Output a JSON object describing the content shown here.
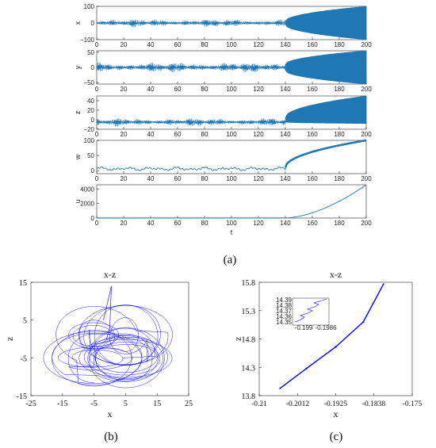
{
  "figure": {
    "caption_a": "(a)",
    "caption_b": "(b)",
    "caption_c": "(c)"
  },
  "chart_data": [
    {
      "type": "line",
      "panel": "a",
      "xlabel": "t",
      "x_ticks": [
        "0",
        "20",
        "40",
        "60",
        "80",
        "100",
        "120",
        "140",
        "160",
        "180",
        "200"
      ],
      "xlim": [
        0,
        200
      ],
      "line_color": "#1f77b4",
      "subplots": [
        {
          "ylabel": "x",
          "ylim": [
            -100,
            100
          ],
          "yticks": [
            "100",
            "0",
            "−100"
          ]
        },
        {
          "ylabel": "y",
          "ylim": [
            -55,
            55
          ],
          "yticks": [
            "50",
            "0",
            "−50"
          ]
        },
        {
          "ylabel": "z",
          "ylim": [
            -20,
            50
          ],
          "yticks": [
            "40",
            "20",
            "0",
            "−20"
          ]
        },
        {
          "ylabel": "w",
          "ylim": [
            -10,
            100
          ],
          "yticks": [
            "100",
            "50",
            "0"
          ]
        },
        {
          "ylabel": "u",
          "ylim": [
            0,
            4600
          ],
          "yticks": [
            "4000",
            "2000",
            "0"
          ]
        }
      ],
      "summary": {
        "t_transition": 140,
        "x_envelope_end": 100,
        "y_envelope_end": 55,
        "z_upper_end": 50,
        "w_end": 100,
        "u_end": 4600
      }
    },
    {
      "type": "line",
      "panel": "b",
      "title": "x-z",
      "xlabel": "x",
      "ylabel": "z",
      "xlim": [
        -25,
        25
      ],
      "ylim": [
        -15,
        15
      ],
      "x_ticks": [
        "-25",
        "-15",
        "-5",
        "5",
        "15",
        "25"
      ],
      "y_ticks": [
        "15",
        "5",
        "-5",
        "-15"
      ],
      "line_color": "#0000ff"
    },
    {
      "type": "line",
      "panel": "c",
      "title": "x-z",
      "xlabel": "x",
      "ylabel": "z",
      "xlim": [
        -0.21,
        -0.175
      ],
      "ylim": [
        13.8,
        15.8
      ],
      "x_ticks": [
        "-0.21",
        "-0.2012",
        "-0.1925",
        "-0.1838",
        "-0.175"
      ],
      "y_ticks": [
        "15.8",
        "15.3",
        "14.8",
        "14.3",
        "13.8"
      ],
      "line_color": "#0000ff",
      "x": [
        -0.2054,
        -0.1992,
        -0.1925,
        -0.1862,
        -0.1815
      ],
      "y": [
        13.92,
        14.28,
        14.66,
        15.1,
        15.78
      ],
      "inset": {
        "x_ticks": [
          "-0.199",
          "-0.1986"
        ],
        "y_ticks": [
          "14.39",
          "14.38",
          "14.37",
          "14.36",
          "14.35"
        ]
      }
    }
  ]
}
